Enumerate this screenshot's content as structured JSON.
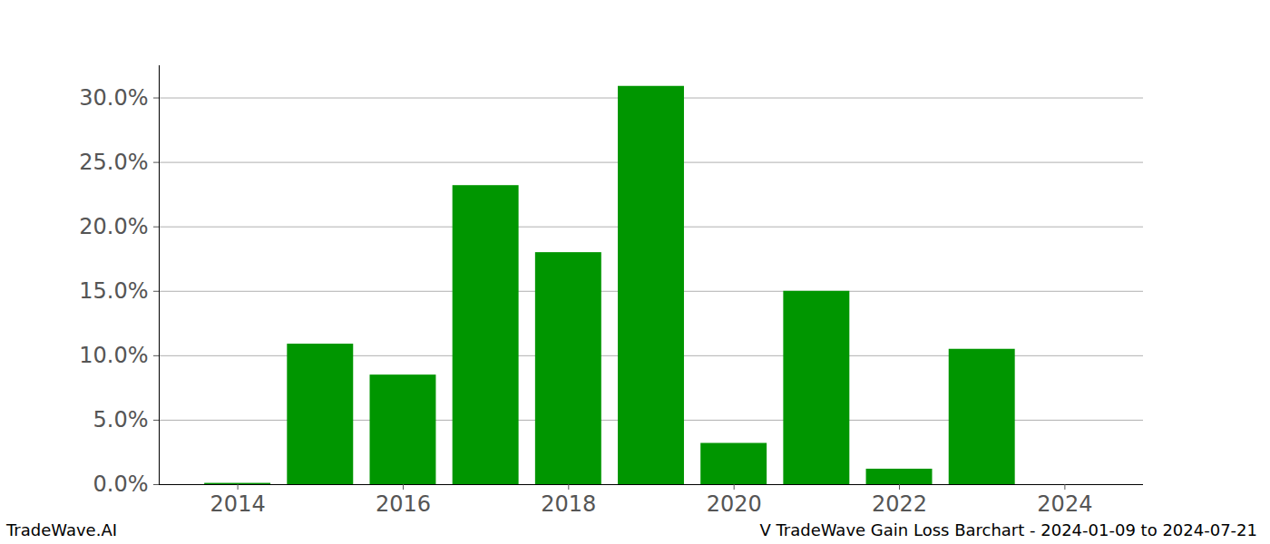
{
  "chart_data": {
    "type": "bar",
    "x": [
      2014,
      2015,
      2016,
      2017,
      2018,
      2019,
      2020,
      2021,
      2022,
      2023
    ],
    "values": [
      0.1,
      10.9,
      8.5,
      23.2,
      18.0,
      30.9,
      3.2,
      15.0,
      1.2,
      10.5
    ],
    "color": "#009600",
    "xlim": [
      2013.05,
      2024.95
    ],
    "xticks": [
      2014,
      2016,
      2018,
      2020,
      2022,
      2024
    ],
    "ylim": [
      0,
      32.5
    ],
    "yticks": [
      {
        "value": 0,
        "label": "0.0%"
      },
      {
        "value": 5,
        "label": "5.0%"
      },
      {
        "value": 10,
        "label": "10.0%"
      },
      {
        "value": 15,
        "label": "15.0%"
      },
      {
        "value": 20,
        "label": "20.0%"
      },
      {
        "value": 25,
        "label": "25.0%"
      },
      {
        "value": 30,
        "label": "30.0%"
      }
    ],
    "grid": true,
    "annotations": [
      "TradeWave.AI",
      "V TradeWave Gain Loss Barchart - 2024-01-09 to 2024-07-21"
    ]
  }
}
